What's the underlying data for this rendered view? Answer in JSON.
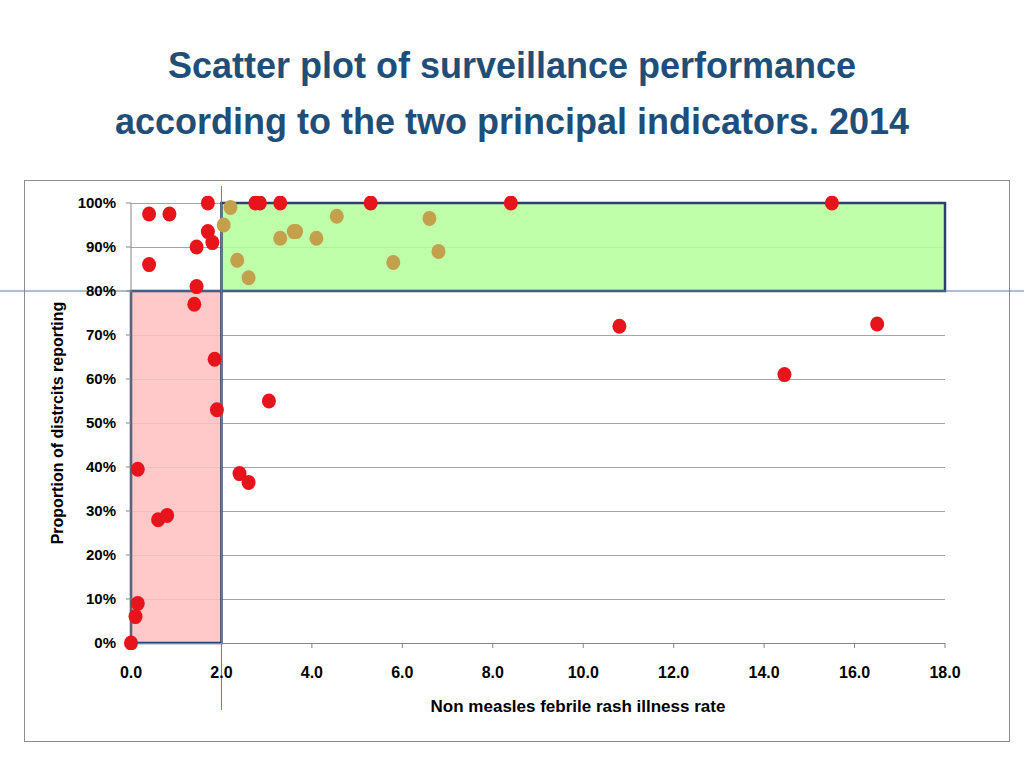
{
  "chart_data": {
    "type": "scatter",
    "title": [
      "Scatter plot of surveillance performance",
      "according to the two principal indicators. 2014"
    ],
    "x_label": "Non measles febrile rash illness rate",
    "y_label": "Proportion of distrcits reporting",
    "xlim": [
      0,
      18
    ],
    "ylim": [
      0,
      100
    ],
    "xticks": [
      {
        "value": 0,
        "label": "0.0"
      },
      {
        "value": 2,
        "label": "2.0"
      },
      {
        "value": 4,
        "label": "4.0"
      },
      {
        "value": 6,
        "label": "6.0"
      },
      {
        "value": 8,
        "label": "8.0"
      },
      {
        "value": 10,
        "label": "10.0"
      },
      {
        "value": 12,
        "label": "12.0"
      },
      {
        "value": 14,
        "label": "14.0"
      },
      {
        "value": 16,
        "label": "16.0"
      },
      {
        "value": 18,
        "label": "18.0"
      }
    ],
    "yticks": [
      {
        "value": 0,
        "label": "0%"
      },
      {
        "value": 10,
        "label": "10%"
      },
      {
        "value": 20,
        "label": "20%"
      },
      {
        "value": 30,
        "label": "30%"
      },
      {
        "value": 40,
        "label": "40%"
      },
      {
        "value": 50,
        "label": "50%"
      },
      {
        "value": 60,
        "label": "60%"
      },
      {
        "value": 70,
        "label": "70%"
      },
      {
        "value": 80,
        "label": "80%"
      },
      {
        "value": 90,
        "label": "90%"
      },
      {
        "value": 100,
        "label": "100%"
      }
    ],
    "grid": true,
    "regions": [
      {
        "x": [
          0,
          2
        ],
        "y": [
          0,
          80
        ],
        "color": "#ffc0c0"
      },
      {
        "x": [
          2,
          18
        ],
        "y": [
          80,
          100
        ],
        "color": "#b5ff9a"
      }
    ],
    "series": [
      {
        "color": "#e8141b",
        "marker": "circle",
        "x": [
          0,
          0.1,
          0.15,
          0.15,
          0.6,
          0.8,
          0.4,
          0.85,
          0.4,
          1.45,
          1.45,
          1.4,
          1.7,
          1.7,
          1.8,
          1.85,
          1.9,
          3.05,
          2.4,
          2.6,
          2.75,
          2.85,
          3.3,
          5.3,
          8.4,
          15.5,
          10.8,
          14.45,
          16.5
        ],
        "values": [
          0,
          6,
          9,
          39.5,
          28,
          29,
          97.5,
          97.5,
          86,
          90,
          81,
          77,
          100,
          93.5,
          91,
          64.5,
          53,
          55,
          38.5,
          36.5,
          100,
          100,
          100,
          100,
          100,
          100,
          72,
          61,
          72.5
        ]
      },
      {
        "color": "#c3a04c",
        "marker": "circle",
        "x": [
          2.05,
          2.2,
          2.35,
          2.6,
          3.3,
          3.6,
          3.65,
          4.1,
          4.55,
          5.8,
          6.6,
          6.8
        ],
        "values": [
          95,
          99,
          87,
          83,
          92,
          93.5,
          93.5,
          92,
          97,
          86.5,
          96.5,
          89
        ]
      }
    ]
  }
}
